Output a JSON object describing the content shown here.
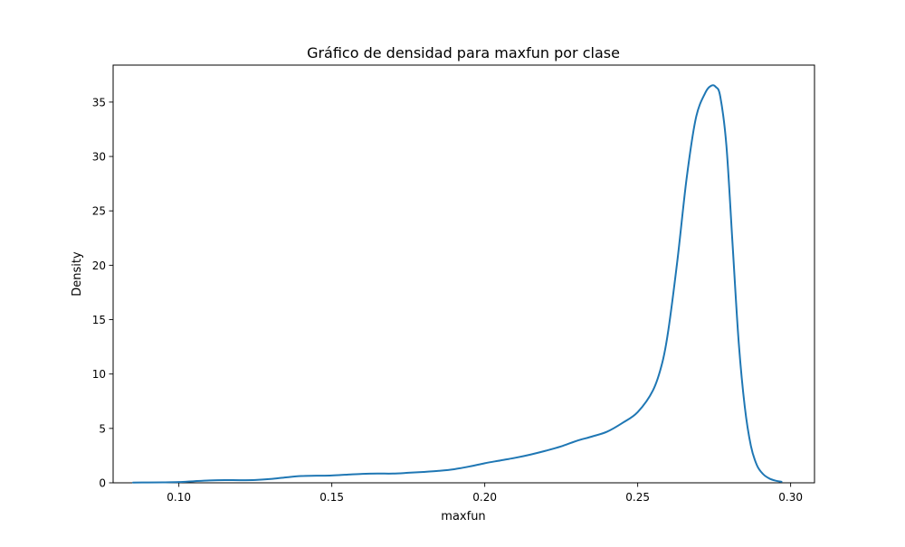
{
  "chart_data": {
    "type": "line",
    "title": "Gráfico de densidad para maxfun por clase",
    "xlabel": "maxfun",
    "ylabel": "Density",
    "xlim": [
      0.0785,
      0.3078
    ],
    "ylim": [
      0,
      38.4
    ],
    "xticks": [
      0.1,
      0.15,
      0.2,
      0.25,
      0.3
    ],
    "xtick_labels": [
      "0.10",
      "0.15",
      "0.20",
      "0.25",
      "0.30"
    ],
    "yticks": [
      0,
      5,
      10,
      15,
      20,
      25,
      30,
      35
    ],
    "ytick_labels": [
      "0",
      "5",
      "10",
      "15",
      "20",
      "25",
      "30",
      "35"
    ],
    "grid": false,
    "series": [
      {
        "color": "#1f77b4",
        "x": [
          0.085,
          0.09,
          0.095,
          0.1,
          0.105,
          0.11,
          0.115,
          0.12,
          0.125,
          0.13,
          0.135,
          0.14,
          0.145,
          0.15,
          0.155,
          0.16,
          0.165,
          0.17,
          0.175,
          0.18,
          0.185,
          0.19,
          0.195,
          0.2,
          0.205,
          0.21,
          0.215,
          0.22,
          0.225,
          0.23,
          0.235,
          0.24,
          0.245,
          0.25,
          0.255,
          0.258,
          0.26,
          0.263,
          0.266,
          0.269,
          0.272,
          0.274,
          0.2755,
          0.277,
          0.279,
          0.281,
          0.283,
          0.285,
          0.287,
          0.289,
          0.291,
          0.293,
          0.295,
          0.297
        ],
        "y": [
          0.02,
          0.03,
          0.04,
          0.07,
          0.15,
          0.22,
          0.25,
          0.24,
          0.26,
          0.35,
          0.5,
          0.62,
          0.65,
          0.68,
          0.75,
          0.82,
          0.85,
          0.85,
          0.92,
          1.0,
          1.1,
          1.25,
          1.5,
          1.8,
          2.05,
          2.3,
          2.6,
          2.95,
          3.35,
          3.85,
          4.25,
          4.7,
          5.5,
          6.5,
          8.5,
          11.0,
          14.0,
          20.5,
          28.0,
          33.5,
          35.8,
          36.5,
          36.4,
          35.5,
          31.0,
          22.0,
          13.0,
          7.0,
          3.4,
          1.6,
          0.8,
          0.4,
          0.2,
          0.1
        ]
      }
    ]
  }
}
